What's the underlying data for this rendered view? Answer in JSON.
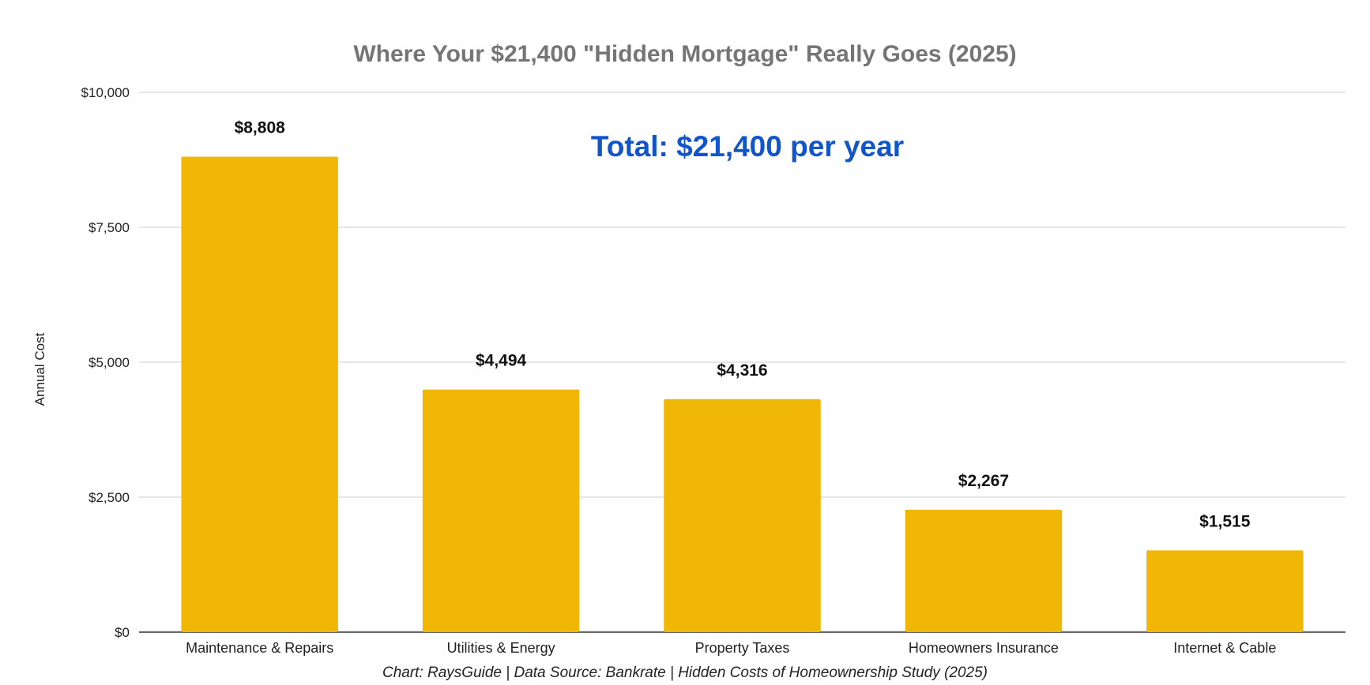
{
  "chart_data": {
    "type": "bar",
    "title": "Where Your $21,400 \"Hidden Mortgage\" Really Goes (2025)",
    "xlabel": "",
    "ylabel": "Annual Cost",
    "categories": [
      "Maintenance & Repairs",
      "Utilities & Energy",
      "Property Taxes",
      "Homeowners Insurance",
      "Internet & Cable"
    ],
    "values": [
      8808,
      4494,
      4316,
      2267,
      1515
    ],
    "data_labels": [
      "$8,808",
      "$4,494",
      "$4,316",
      "$2,267",
      "$1,515"
    ],
    "ylim": [
      0,
      10000
    ],
    "yticks": [
      0,
      2500,
      5000,
      7500,
      10000
    ],
    "ytick_labels": [
      "$0",
      "$2,500",
      "$5,000",
      "$7,500",
      "$10,000"
    ],
    "grid": true,
    "legend": "none",
    "annotation": "Total: $21,400 per year",
    "source_note": "Chart: RaysGuide | Data Source: Bankrate | Hidden Costs of Homeownership Study (2025)",
    "colors": {
      "bar": "#F1B707",
      "annotation": "#1155CC",
      "title": "#757575"
    }
  }
}
